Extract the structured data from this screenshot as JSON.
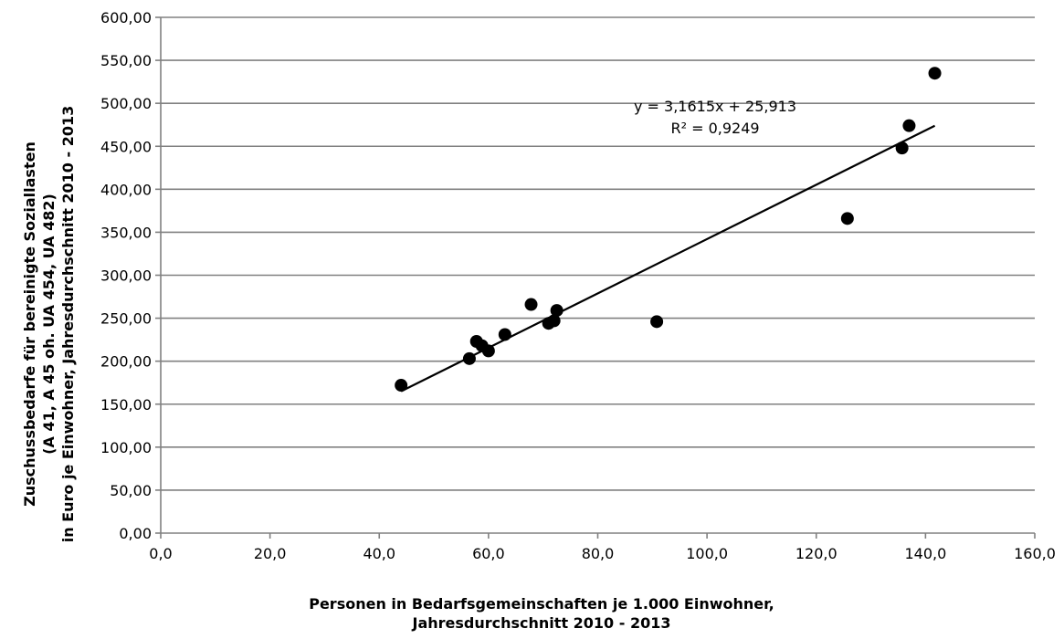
{
  "chart_data": {
    "type": "scatter",
    "title": "",
    "xlabel_lines": [
      "Personen in Bedarfsgemeinschaften je 1.000 Einwohner,",
      "Jahresdurchschnitt 2010 - 2013"
    ],
    "ylabel_lines": [
      "Zuschussbedarfe für bereinigte Soziallasten",
      "(A 41, A 45 oh. UA 454, UA 482)",
      "in Euro je Einwohner, Jahresdurchschnitt 2010 - 2013"
    ],
    "xlim": [
      0,
      160
    ],
    "ylim": [
      0,
      600
    ],
    "x_ticks": [
      0,
      20,
      40,
      60,
      80,
      100,
      120,
      140,
      160
    ],
    "x_tick_labels": [
      "0,0",
      "20,0",
      "40,0",
      "60,0",
      "80,0",
      "100,0",
      "120,0",
      "140,0",
      "160,0"
    ],
    "y_ticks": [
      0,
      50,
      100,
      150,
      200,
      250,
      300,
      350,
      400,
      450,
      500,
      550,
      600
    ],
    "y_tick_labels": [
      "0,00",
      "50,00",
      "100,00",
      "150,00",
      "200,00",
      "250,00",
      "300,00",
      "350,00",
      "400,00",
      "450,00",
      "500,00",
      "550,00",
      "600,00"
    ],
    "grid": "horizontal",
    "points": [
      {
        "x": 44.0,
        "y": 172
      },
      {
        "x": 56.5,
        "y": 203
      },
      {
        "x": 57.8,
        "y": 223
      },
      {
        "x": 58.8,
        "y": 218
      },
      {
        "x": 60.0,
        "y": 212
      },
      {
        "x": 63.0,
        "y": 231
      },
      {
        "x": 67.8,
        "y": 266
      },
      {
        "x": 71.0,
        "y": 244
      },
      {
        "x": 72.0,
        "y": 247
      },
      {
        "x": 72.5,
        "y": 259
      },
      {
        "x": 90.8,
        "y": 246
      },
      {
        "x": 125.7,
        "y": 366
      },
      {
        "x": 135.7,
        "y": 448
      },
      {
        "x": 137.0,
        "y": 474
      },
      {
        "x": 141.7,
        "y": 535
      }
    ],
    "trendline": {
      "slope": 3.1615,
      "intercept": 25.913,
      "x_range": [
        44.0,
        141.7
      ],
      "equation_label": "y = 3,1615x + 25,913",
      "r2_label": "R² = 0,9249"
    },
    "colors": {
      "marker": "#000000",
      "trendline": "#000000",
      "grid": "#808080",
      "axis": "#808080"
    }
  }
}
